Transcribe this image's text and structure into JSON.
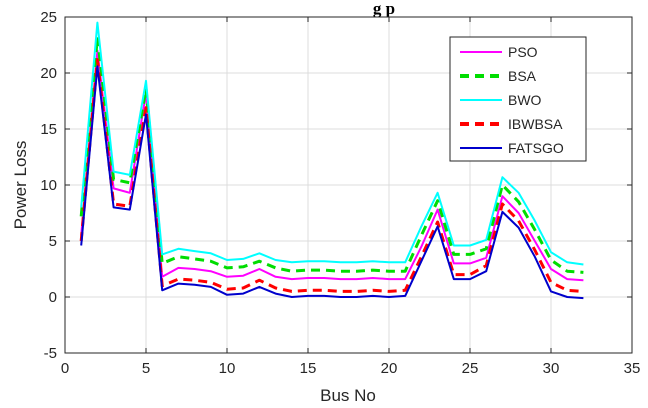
{
  "chart_data": {
    "type": "line",
    "title": "",
    "title_fragment": "g         p",
    "xlabel": "Bus No",
    "ylabel": "Power Loss",
    "xlim": [
      0,
      35
    ],
    "ylim": [
      -5,
      25
    ],
    "xticks": [
      0,
      5,
      10,
      15,
      20,
      25,
      30,
      35
    ],
    "yticks": [
      -5,
      0,
      5,
      10,
      15,
      20,
      25
    ],
    "grid": true,
    "legend_position": "top-right",
    "x": [
      1,
      2,
      3,
      4,
      5,
      6,
      7,
      8,
      9,
      10,
      11,
      12,
      13,
      14,
      15,
      16,
      17,
      18,
      19,
      20,
      21,
      22,
      23,
      24,
      25,
      26,
      27,
      28,
      29,
      30,
      31,
      32
    ],
    "series": [
      {
        "name": "PSO",
        "color": "#ff00ff",
        "dash": "solid",
        "values": [
          5.5,
          22.0,
          9.7,
          9.3,
          18.2,
          1.8,
          2.6,
          2.5,
          2.3,
          1.8,
          1.9,
          2.5,
          1.8,
          1.6,
          1.7,
          1.7,
          1.6,
          1.6,
          1.7,
          1.6,
          1.6,
          4.5,
          7.8,
          3.0,
          3.0,
          3.5,
          9.0,
          7.5,
          5.0,
          2.5,
          1.6,
          1.5
        ]
      },
      {
        "name": "BSA",
        "color": "#00dd00",
        "dash": "dashed",
        "values": [
          7.2,
          23.2,
          10.5,
          10.2,
          18.6,
          3.0,
          3.6,
          3.4,
          3.2,
          2.6,
          2.7,
          3.2,
          2.6,
          2.3,
          2.4,
          2.4,
          2.3,
          2.3,
          2.4,
          2.3,
          2.3,
          5.5,
          8.6,
          3.8,
          3.8,
          4.3,
          10.0,
          8.5,
          6.0,
          3.3,
          2.3,
          2.2
        ]
      },
      {
        "name": "BWO",
        "color": "#00ffff",
        "dash": "solid",
        "values": [
          8.0,
          24.5,
          11.2,
          10.9,
          19.3,
          3.8,
          4.3,
          4.1,
          3.9,
          3.3,
          3.4,
          3.9,
          3.3,
          3.1,
          3.2,
          3.2,
          3.1,
          3.1,
          3.2,
          3.1,
          3.1,
          6.3,
          9.3,
          4.6,
          4.6,
          5.1,
          10.7,
          9.3,
          6.8,
          4.0,
          3.1,
          2.9
        ]
      },
      {
        "name": "IBWBSA",
        "color": "#ff0000",
        "dash": "dashed",
        "values": [
          5.0,
          21.2,
          8.3,
          8.1,
          16.9,
          1.0,
          1.6,
          1.5,
          1.3,
          0.7,
          0.8,
          1.5,
          0.8,
          0.5,
          0.6,
          0.6,
          0.5,
          0.5,
          0.6,
          0.5,
          0.6,
          3.6,
          6.7,
          2.0,
          2.0,
          2.8,
          8.3,
          6.8,
          4.2,
          1.3,
          0.6,
          0.5
        ]
      },
      {
        "name": "FATSGO",
        "color": "#0000cc",
        "dash": "solid",
        "values": [
          4.6,
          20.6,
          8.0,
          7.8,
          16.3,
          0.6,
          1.2,
          1.1,
          0.9,
          0.2,
          0.3,
          0.9,
          0.3,
          0.0,
          0.1,
          0.1,
          0.0,
          0.0,
          0.1,
          0.0,
          0.1,
          3.2,
          6.3,
          1.6,
          1.6,
          2.3,
          7.6,
          6.2,
          3.6,
          0.5,
          0.0,
          -0.1
        ]
      }
    ]
  }
}
